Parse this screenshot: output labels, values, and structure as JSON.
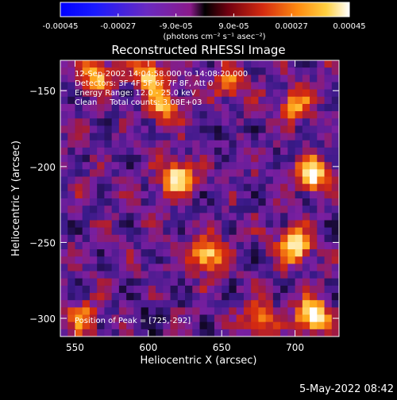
{
  "colorbar": {
    "tick_labels": [
      "-0.00045",
      "-0.00027",
      "-9.0e-05",
      "9.0e-05",
      "0.00027",
      "0.00045"
    ],
    "tick_values": [
      -0.00045,
      -0.00027,
      -9e-05,
      9e-05,
      0.00027,
      0.00045
    ],
    "range": [
      -0.00045,
      0.00045
    ],
    "units_label": "(photons cm⁻² s⁻¹ asec⁻²)"
  },
  "chart_data": {
    "type": "heatmap",
    "title": "Reconstructed RHESSI Image",
    "xlabel": "Heliocentric X (arcsec)",
    "ylabel": "Heliocentric Y (arcsec)",
    "xlim": [
      540,
      730
    ],
    "ylim": [
      -312,
      -130
    ],
    "x_tick_values": [
      550,
      600,
      650,
      700
    ],
    "x_tick_labels": [
      "550",
      "600",
      "650",
      "700"
    ],
    "y_tick_values": [
      -150,
      -200,
      -250,
      -300
    ],
    "y_tick_labels": [
      "−150",
      "−200",
      "−250",
      "−300"
    ],
    "colormap_stops": [
      "#000000",
      "#1a0a3a",
      "#3a1a8a",
      "#7a1fa0",
      "#a01a40",
      "#d42a10",
      "#f06a10",
      "#ffb020",
      "#ffe080",
      "#ffffff"
    ],
    "peak_position": [
      725,
      -292
    ],
    "hot_spots": [
      {
        "x": 620,
        "y": -208,
        "level": 0.85
      },
      {
        "x": 640,
        "y": -258,
        "level": 0.8
      },
      {
        "x": 712,
        "y": -205,
        "level": 0.9
      },
      {
        "x": 700,
        "y": -252,
        "level": 0.9
      },
      {
        "x": 712,
        "y": -298,
        "level": 1.0
      },
      {
        "x": 600,
        "y": -140,
        "level": 0.75
      },
      {
        "x": 565,
        "y": -140,
        "level": 0.65
      },
      {
        "x": 610,
        "y": -160,
        "level": 0.6
      },
      {
        "x": 675,
        "y": -300,
        "level": 0.6
      },
      {
        "x": 655,
        "y": -145,
        "level": 0.5
      },
      {
        "x": 555,
        "y": -300,
        "level": 0.5
      },
      {
        "x": 700,
        "y": -160,
        "level": 0.55
      }
    ]
  },
  "annotations": {
    "time_range": "12-Sep-2002 14:04:58.000 to 14:08:20.000",
    "detectors": "Detectors: 3F 4F 5F 6F 7F 8F, Att 0",
    "energy_range": "Energy Range: 12.0 - 25.0 keV",
    "method_counts": "Clean     Total counts: 3.08E+03",
    "peak": "Position of Peak = [725,-292]"
  },
  "footer": {
    "timestamp": "5-May-2022 08:42"
  }
}
